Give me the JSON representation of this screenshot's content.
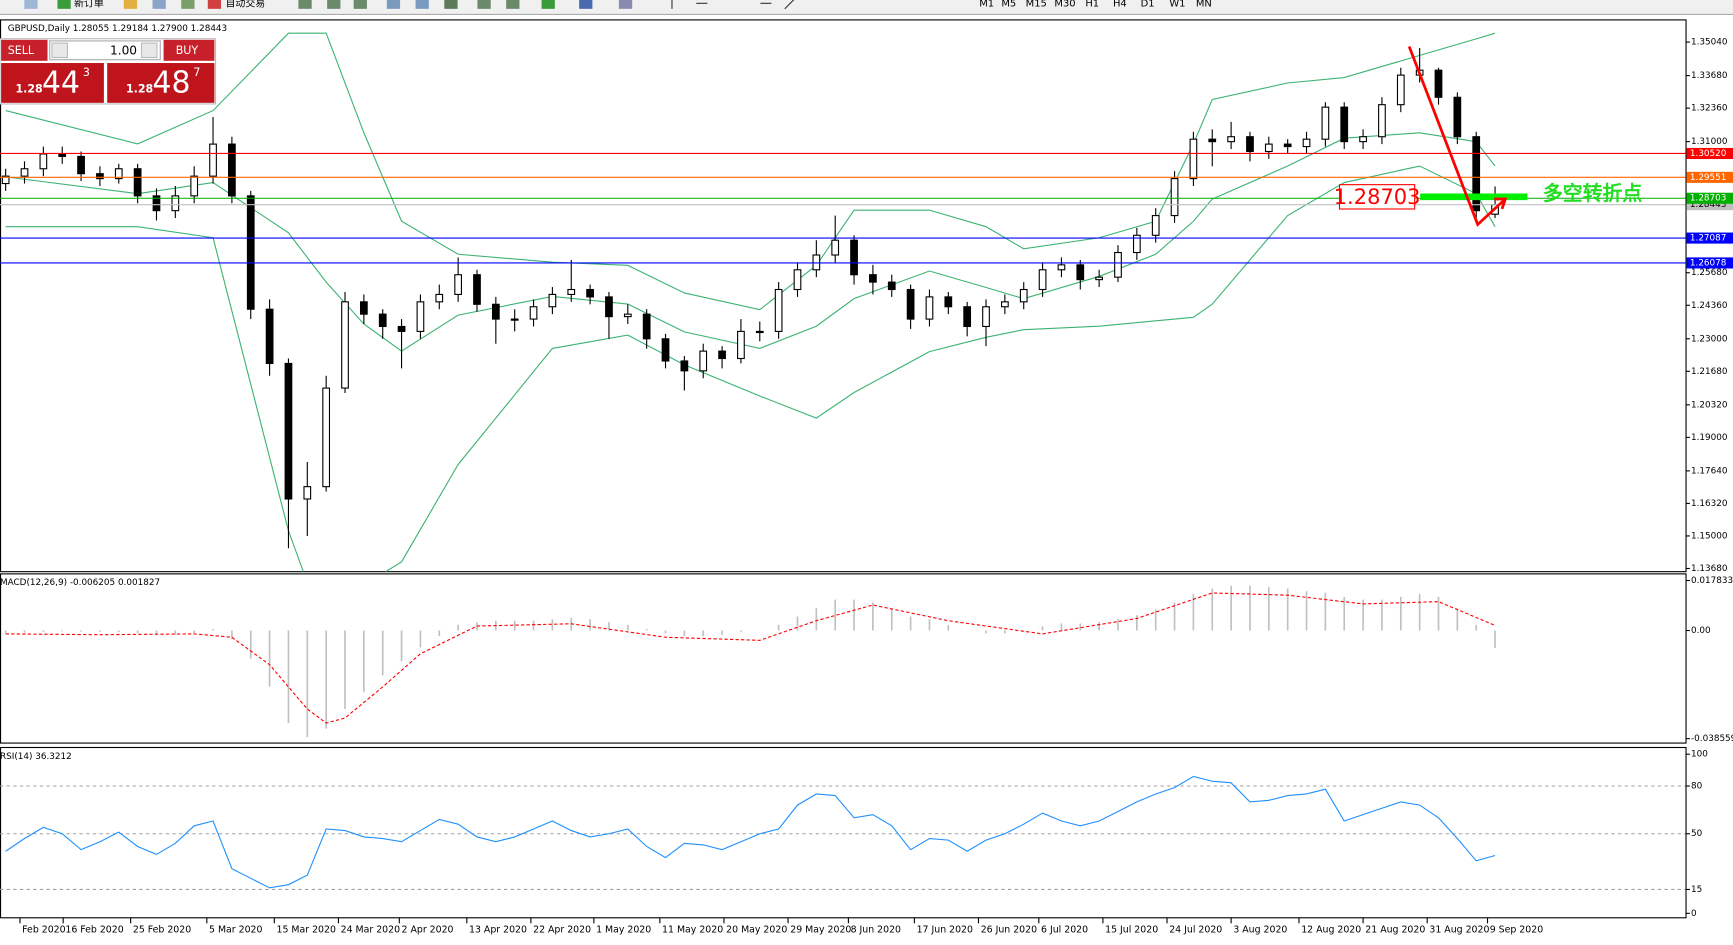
{
  "toolbar": {
    "new_order": "新订单",
    "auto_trading": "自动交易",
    "timeframes": [
      "M1",
      "M5",
      "M15",
      "M30",
      "H1",
      "H4",
      "D1",
      "W1",
      "MN"
    ]
  },
  "trade_panel": {
    "sell": "SELL",
    "lot": "1.00",
    "buy": "BUY",
    "bid": {
      "prefix": "1.28",
      "pips": "44",
      "point": "3"
    },
    "ask": {
      "prefix": "1.28",
      "pips": "48",
      "point": "7"
    }
  },
  "annotation": {
    "label": "1.28703",
    "text": "多空转折点"
  },
  "chart_data": [
    {
      "type": "candlestick",
      "title": "GBPUSD,Daily  1.28055 1.29184 1.27900 1.28443",
      "xlim": [
        -0.3,
        89.1
      ],
      "ylim": [
        1.1355,
        1.3594
      ],
      "yticks": [
        {
          "value": 1.3504,
          "label": "1.35040"
        },
        {
          "value": 1.3368,
          "label": "1.33680"
        },
        {
          "value": 1.3236,
          "label": "1.32360"
        },
        {
          "value": 1.31,
          "label": "1.31000"
        },
        {
          "value": 1.2568,
          "label": "1.25680"
        },
        {
          "value": 1.2436,
          "label": "1.24360"
        },
        {
          "value": 1.23,
          "label": "1.23000"
        },
        {
          "value": 1.2168,
          "label": "1.21680"
        },
        {
          "value": 1.2032,
          "label": "1.20320"
        },
        {
          "value": 1.19,
          "label": "1.19000"
        },
        {
          "value": 1.1764,
          "label": "1.17640"
        },
        {
          "value": 1.1632,
          "label": "1.16320"
        },
        {
          "value": 1.15,
          "label": "1.15000"
        },
        {
          "value": 1.1368,
          "label": "1.13680"
        }
      ],
      "colors": {
        "up": "#ffffff",
        "down": "#000000",
        "wick": "#000000"
      },
      "open": [
        1.293,
        1.296,
        1.299,
        1.305,
        1.304,
        1.297,
        1.295,
        1.299,
        1.288,
        1.282,
        1.288,
        1.296,
        1.309,
        1.288,
        1.242,
        1.22,
        1.165,
        1.17,
        1.21,
        1.245,
        1.24,
        1.235,
        1.233,
        1.245,
        1.248,
        1.256,
        1.244,
        1.238,
        1.238,
        1.243,
        1.248,
        1.25,
        1.247,
        1.239,
        1.24,
        1.23,
        1.221,
        1.217,
        1.225,
        1.222,
        1.233,
        1.233,
        1.25,
        1.258,
        1.264,
        1.27,
        1.256,
        1.253,
        1.25,
        1.238,
        1.247,
        1.243,
        1.235,
        1.243,
        1.245,
        1.25,
        1.258,
        1.26,
        1.254,
        1.255,
        1.265,
        1.272,
        1.28,
        1.295,
        1.311,
        1.31,
        1.312,
        1.306,
        1.309,
        1.308,
        1.311,
        1.324,
        1.31,
        1.312,
        1.325,
        1.337,
        1.339,
        1.328,
        1.312,
        1.28055
      ],
      "high": [
        1.299,
        1.302,
        1.308,
        1.308,
        1.306,
        1.3,
        1.301,
        1.301,
        1.291,
        1.292,
        1.3,
        1.32,
        1.312,
        1.29,
        1.246,
        1.222,
        1.18,
        1.215,
        1.249,
        1.248,
        1.242,
        1.238,
        1.248,
        1.252,
        1.263,
        1.258,
        1.247,
        1.242,
        1.246,
        1.251,
        1.262,
        1.252,
        1.249,
        1.244,
        1.242,
        1.232,
        1.223,
        1.228,
        1.227,
        1.238,
        1.237,
        1.253,
        1.261,
        1.27,
        1.28,
        1.272,
        1.26,
        1.256,
        1.252,
        1.25,
        1.249,
        1.245,
        1.246,
        1.248,
        1.253,
        1.261,
        1.263,
        1.262,
        1.258,
        1.268,
        1.275,
        1.283,
        1.298,
        1.314,
        1.315,
        1.318,
        1.314,
        1.312,
        1.311,
        1.314,
        1.326,
        1.326,
        1.315,
        1.328,
        1.34,
        1.348,
        1.34,
        1.33,
        1.314,
        1.29184
      ],
      "low": [
        1.29,
        1.293,
        1.296,
        1.301,
        1.294,
        1.292,
        1.293,
        1.285,
        1.278,
        1.279,
        1.285,
        1.293,
        1.285,
        1.238,
        1.215,
        1.145,
        1.15,
        1.168,
        1.208,
        1.236,
        1.23,
        1.218,
        1.23,
        1.242,
        1.245,
        1.241,
        1.228,
        1.233,
        1.235,
        1.24,
        1.245,
        1.244,
        1.23,
        1.236,
        1.226,
        1.218,
        1.209,
        1.214,
        1.218,
        1.22,
        1.229,
        1.23,
        1.247,
        1.255,
        1.261,
        1.252,
        1.248,
        1.247,
        1.234,
        1.235,
        1.24,
        1.231,
        1.227,
        1.24,
        1.242,
        1.247,
        1.255,
        1.25,
        1.251,
        1.253,
        1.262,
        1.269,
        1.277,
        1.292,
        1.3,
        1.307,
        1.302,
        1.303,
        1.305,
        1.305,
        1.308,
        1.307,
        1.307,
        1.309,
        1.322,
        1.334,
        1.325,
        1.309,
        1.279,
        1.279
      ],
      "close": [
        1.296,
        1.299,
        1.305,
        1.304,
        1.297,
        1.295,
        1.299,
        1.288,
        1.282,
        1.288,
        1.296,
        1.309,
        1.288,
        1.242,
        1.22,
        1.165,
        1.17,
        1.21,
        1.245,
        1.24,
        1.235,
        1.233,
        1.245,
        1.248,
        1.256,
        1.244,
        1.238,
        1.238,
        1.243,
        1.248,
        1.25,
        1.247,
        1.239,
        1.24,
        1.23,
        1.221,
        1.217,
        1.225,
        1.222,
        1.233,
        1.233,
        1.25,
        1.258,
        1.264,
        1.27,
        1.256,
        1.253,
        1.25,
        1.238,
        1.247,
        1.243,
        1.235,
        1.243,
        1.245,
        1.25,
        1.258,
        1.26,
        1.254,
        1.255,
        1.265,
        1.272,
        1.28,
        1.295,
        1.311,
        1.31,
        1.312,
        1.306,
        1.309,
        1.308,
        1.311,
        1.324,
        1.31,
        1.312,
        1.325,
        1.337,
        1.339,
        1.328,
        1.312,
        1.282,
        1.28443
      ],
      "bands": {
        "color": "#3cb371",
        "x": [
          0,
          7,
          11,
          15,
          17,
          19,
          21,
          24,
          29,
          33,
          36,
          40,
          43,
          45,
          49,
          52,
          54,
          58,
          61,
          63,
          64,
          68,
          71,
          75,
          78,
          79
        ],
        "upper": [
          1.3226,
          1.3091,
          1.3226,
          1.354,
          1.354,
          1.3136,
          1.2777,
          1.2643,
          1.2611,
          1.2598,
          1.2486,
          1.2418,
          1.2598,
          1.2822,
          1.2822,
          1.2755,
          1.2665,
          1.271,
          1.2777,
          1.3091,
          1.3271,
          1.3338,
          1.336,
          1.345,
          1.3517,
          1.354
        ],
        "middle": [
          1.2957,
          1.2889,
          1.2934,
          1.273,
          1.253,
          1.236,
          1.225,
          1.2396,
          1.2472,
          1.2441,
          1.2328,
          1.2261,
          1.2351,
          1.2463,
          1.2575,
          1.2508,
          1.2463,
          1.2553,
          1.2643,
          1.2777,
          1.2867,
          1.3001,
          1.3114,
          1.3136,
          1.31,
          1.3001
        ],
        "lower": [
          1.2755,
          1.2755,
          1.271,
          1.1521,
          1.11,
          1.13,
          1.1395,
          1.179,
          1.2261,
          1.2315,
          1.2194,
          1.2068,
          1.1978,
          1.2082,
          1.2248,
          1.2306,
          1.2337,
          1.2351,
          1.2373,
          1.2387,
          1.2441,
          1.28,
          1.2934,
          1.3001,
          1.2889,
          1.2755
        ]
      },
      "levels": [
        {
          "value": 1.3052,
          "label": "1.30520",
          "color": "#ff0000"
        },
        {
          "value": 1.29551,
          "label": "1.29551",
          "color": "#ff6600"
        },
        {
          "value": 1.28703,
          "label": "1.28703",
          "color": "#00b000"
        },
        {
          "value": 1.27087,
          "label": "1.27087",
          "color": "#0000ff"
        },
        {
          "value": 1.26078,
          "label": "1.26078",
          "color": "#0000ff"
        }
      ],
      "current": {
        "value": 1.28443,
        "label": "1.28443",
        "color": "#c0c0c0"
      }
    },
    {
      "type": "macd",
      "title": "MACD(12,26,9) -0.006205 0.001827",
      "xlim": [
        -0.3,
        89.1
      ],
      "ylim": [
        -0.04014,
        0.0202
      ],
      "yticks": [
        0.017833,
        {
          "value": 0,
          "label": "0.00"
        },
        -0.038559
      ],
      "histogram": {
        "color": "#c0c0c0",
        "values": [
          -0.001,
          -0.0008,
          -0.0005,
          -0.0003,
          -0.0004,
          -0.0005,
          -0.0006,
          -0.001,
          -0.0015,
          -0.0015,
          -0.001,
          0.0005,
          -0.003,
          -0.01,
          -0.02,
          -0.033,
          -0.038,
          -0.035,
          -0.028,
          -0.022,
          -0.016,
          -0.011,
          -0.006,
          -0.002,
          0.002,
          0.003,
          0.0035,
          0.0035,
          0.0035,
          0.004,
          0.0045,
          0.004,
          0.003,
          0.002,
          0.0005,
          -0.001,
          -0.002,
          -0.002,
          -0.0015,
          -0.0005,
          0.0,
          0.002,
          0.005,
          0.008,
          0.011,
          0.011,
          0.01,
          0.008,
          0.005,
          0.004,
          0.002,
          0.0,
          -0.001,
          -0.001,
          0.0,
          0.0015,
          0.0025,
          0.0025,
          0.003,
          0.004,
          0.0055,
          0.0075,
          0.01,
          0.013,
          0.015,
          0.016,
          0.016,
          0.0155,
          0.015,
          0.014,
          0.0135,
          0.012,
          0.011,
          0.011,
          0.012,
          0.013,
          0.012,
          0.008,
          0.002,
          -0.006205
        ]
      },
      "signal": {
        "color": "#ff0000",
        "x": [
          0,
          5,
          10,
          12,
          14,
          16,
          17,
          18,
          20,
          22,
          25,
          30,
          35,
          40,
          43,
          46,
          50,
          55,
          60,
          64,
          68,
          72,
          76,
          79
        ],
        "values": [
          -0.0012,
          -0.0015,
          -0.0012,
          -0.0024,
          -0.0122,
          -0.028,
          -0.033,
          -0.0312,
          -0.0201,
          -0.0083,
          0.0016,
          0.0024,
          -0.0024,
          -0.0035,
          0.0035,
          0.0091,
          0.0035,
          -0.0012,
          0.0043,
          0.0134,
          0.0126,
          0.0095,
          0.0103,
          0.001827
        ]
      }
    },
    {
      "type": "line",
      "title": "RSI(14) 36.3212",
      "xlim": [
        -0.3,
        89.1
      ],
      "ylim": [
        -2.8,
        104.2
      ],
      "yticks": [
        100,
        80,
        50,
        15,
        0
      ],
      "levels": [
        80,
        50,
        15
      ],
      "color": "#1e90ff",
      "values": [
        39,
        47,
        54,
        50,
        40,
        45,
        51,
        42,
        37,
        44,
        55,
        58,
        28,
        22,
        16,
        18,
        24,
        53,
        52,
        48,
        47,
        45,
        52,
        59,
        56,
        48,
        45,
        48,
        53,
        58,
        52,
        48,
        50,
        53,
        42,
        35,
        44,
        43,
        40,
        45,
        50,
        53,
        68,
        75,
        74,
        60,
        62,
        55,
        40,
        47,
        46,
        39,
        46,
        50,
        56,
        63,
        58,
        55,
        58,
        64,
        70,
        75,
        79,
        86,
        83,
        82,
        70,
        71,
        74,
        75,
        78,
        58,
        62,
        66,
        70,
        68,
        60,
        47,
        33,
        36.3212
      ],
      "xticks": [
        {
          "value": 0.76,
          "label": "Feb 2020"
        },
        {
          "value": 3.05,
          "label": "16 Feb 2020"
        },
        {
          "value": 6.63,
          "label": "25 Feb 2020"
        },
        {
          "value": 10.67,
          "label": "5 Mar 2020"
        },
        {
          "value": 14.25,
          "label": "15 Mar 2020"
        },
        {
          "value": 17.65,
          "label": "24 Mar 2020"
        },
        {
          "value": 20.88,
          "label": "2 Apr 2020"
        },
        {
          "value": 24.46,
          "label": "13 Apr 2020"
        },
        {
          "value": 27.86,
          "label": "22 Apr 2020"
        },
        {
          "value": 31.2,
          "label": "1 May 2020"
        },
        {
          "value": 34.7,
          "label": "11 May 2020"
        },
        {
          "value": 38.1,
          "label": "20 May 2020"
        },
        {
          "value": 41.5,
          "label": "29 May 2020"
        },
        {
          "value": 44.7,
          "label": "8 Jun 2020"
        },
        {
          "value": 48.2,
          "label": "17 Jun 2020"
        },
        {
          "value": 51.6,
          "label": "26 Jun 2020"
        },
        {
          "value": 54.8,
          "label": "6 Jul 2020"
        },
        {
          "value": 58.2,
          "label": "15 Jul 2020"
        },
        {
          "value": 61.6,
          "label": "24 Jul 2020"
        },
        {
          "value": 65.0,
          "label": "3 Aug 2020"
        },
        {
          "value": 68.6,
          "label": "12 Aug 2020"
        },
        {
          "value": 72.0,
          "label": "21 Aug 2020"
        },
        {
          "value": 75.4,
          "label": "31 Aug 2020"
        },
        {
          "value": 78.6,
          "label": "9 Sep 2020"
        }
      ]
    }
  ]
}
